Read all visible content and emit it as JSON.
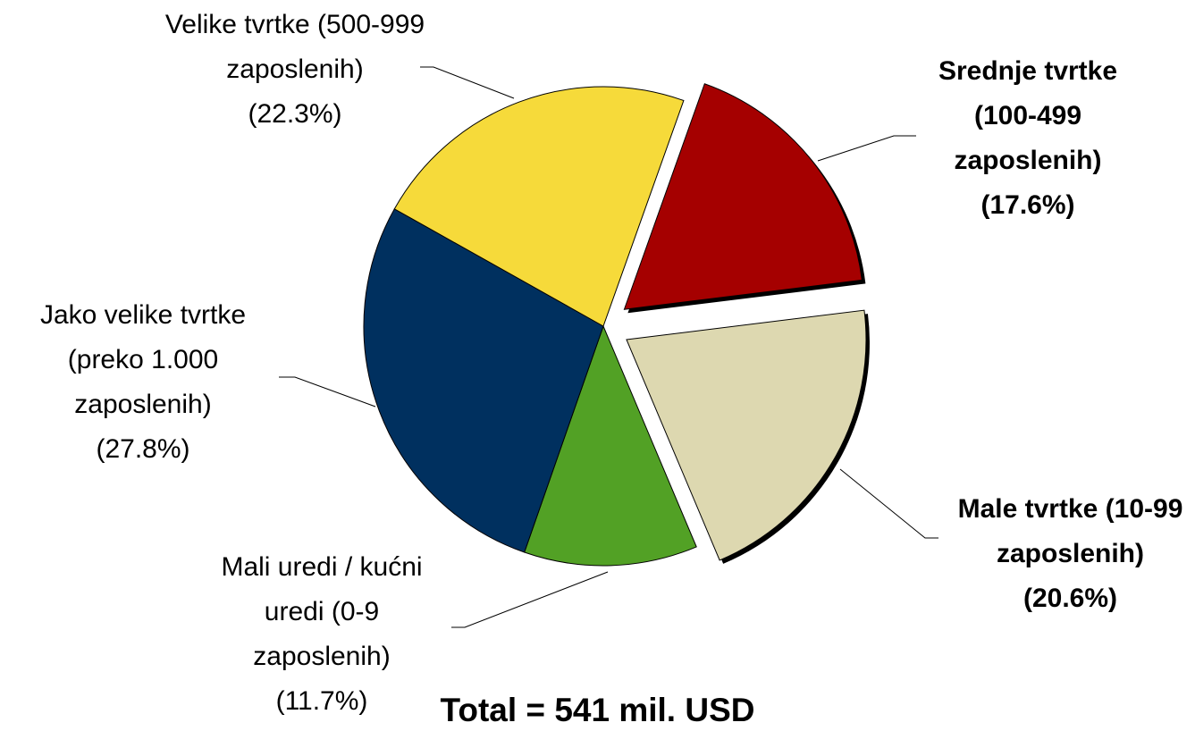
{
  "chart_data": {
    "type": "pie",
    "title": "Total = 541 mil. USD",
    "categories": [
      "Srednje tvrtke (100-499 zaposlenih)",
      "Male tvrtke (10-99 zaposlenih)",
      "Mali uredi / kućni uredi (0-9 zaposlenih)",
      "Jako velike tvrtke (preko 1.000 zaposlenih)",
      "Velike tvrtke (500-999 zaposlenih)"
    ],
    "values": [
      17.6,
      20.6,
      11.7,
      27.8,
      22.3
    ],
    "value_labels": [
      "(17.6%)",
      "(20.6%)",
      "(11.7%)",
      "(27.8%)",
      "(22.3%)"
    ],
    "colors": [
      "#a50000",
      "#ddd8b0",
      "#52a125",
      "#00305f",
      "#f6da3a"
    ],
    "exploded": [
      true,
      true,
      false,
      false,
      false
    ]
  }
}
